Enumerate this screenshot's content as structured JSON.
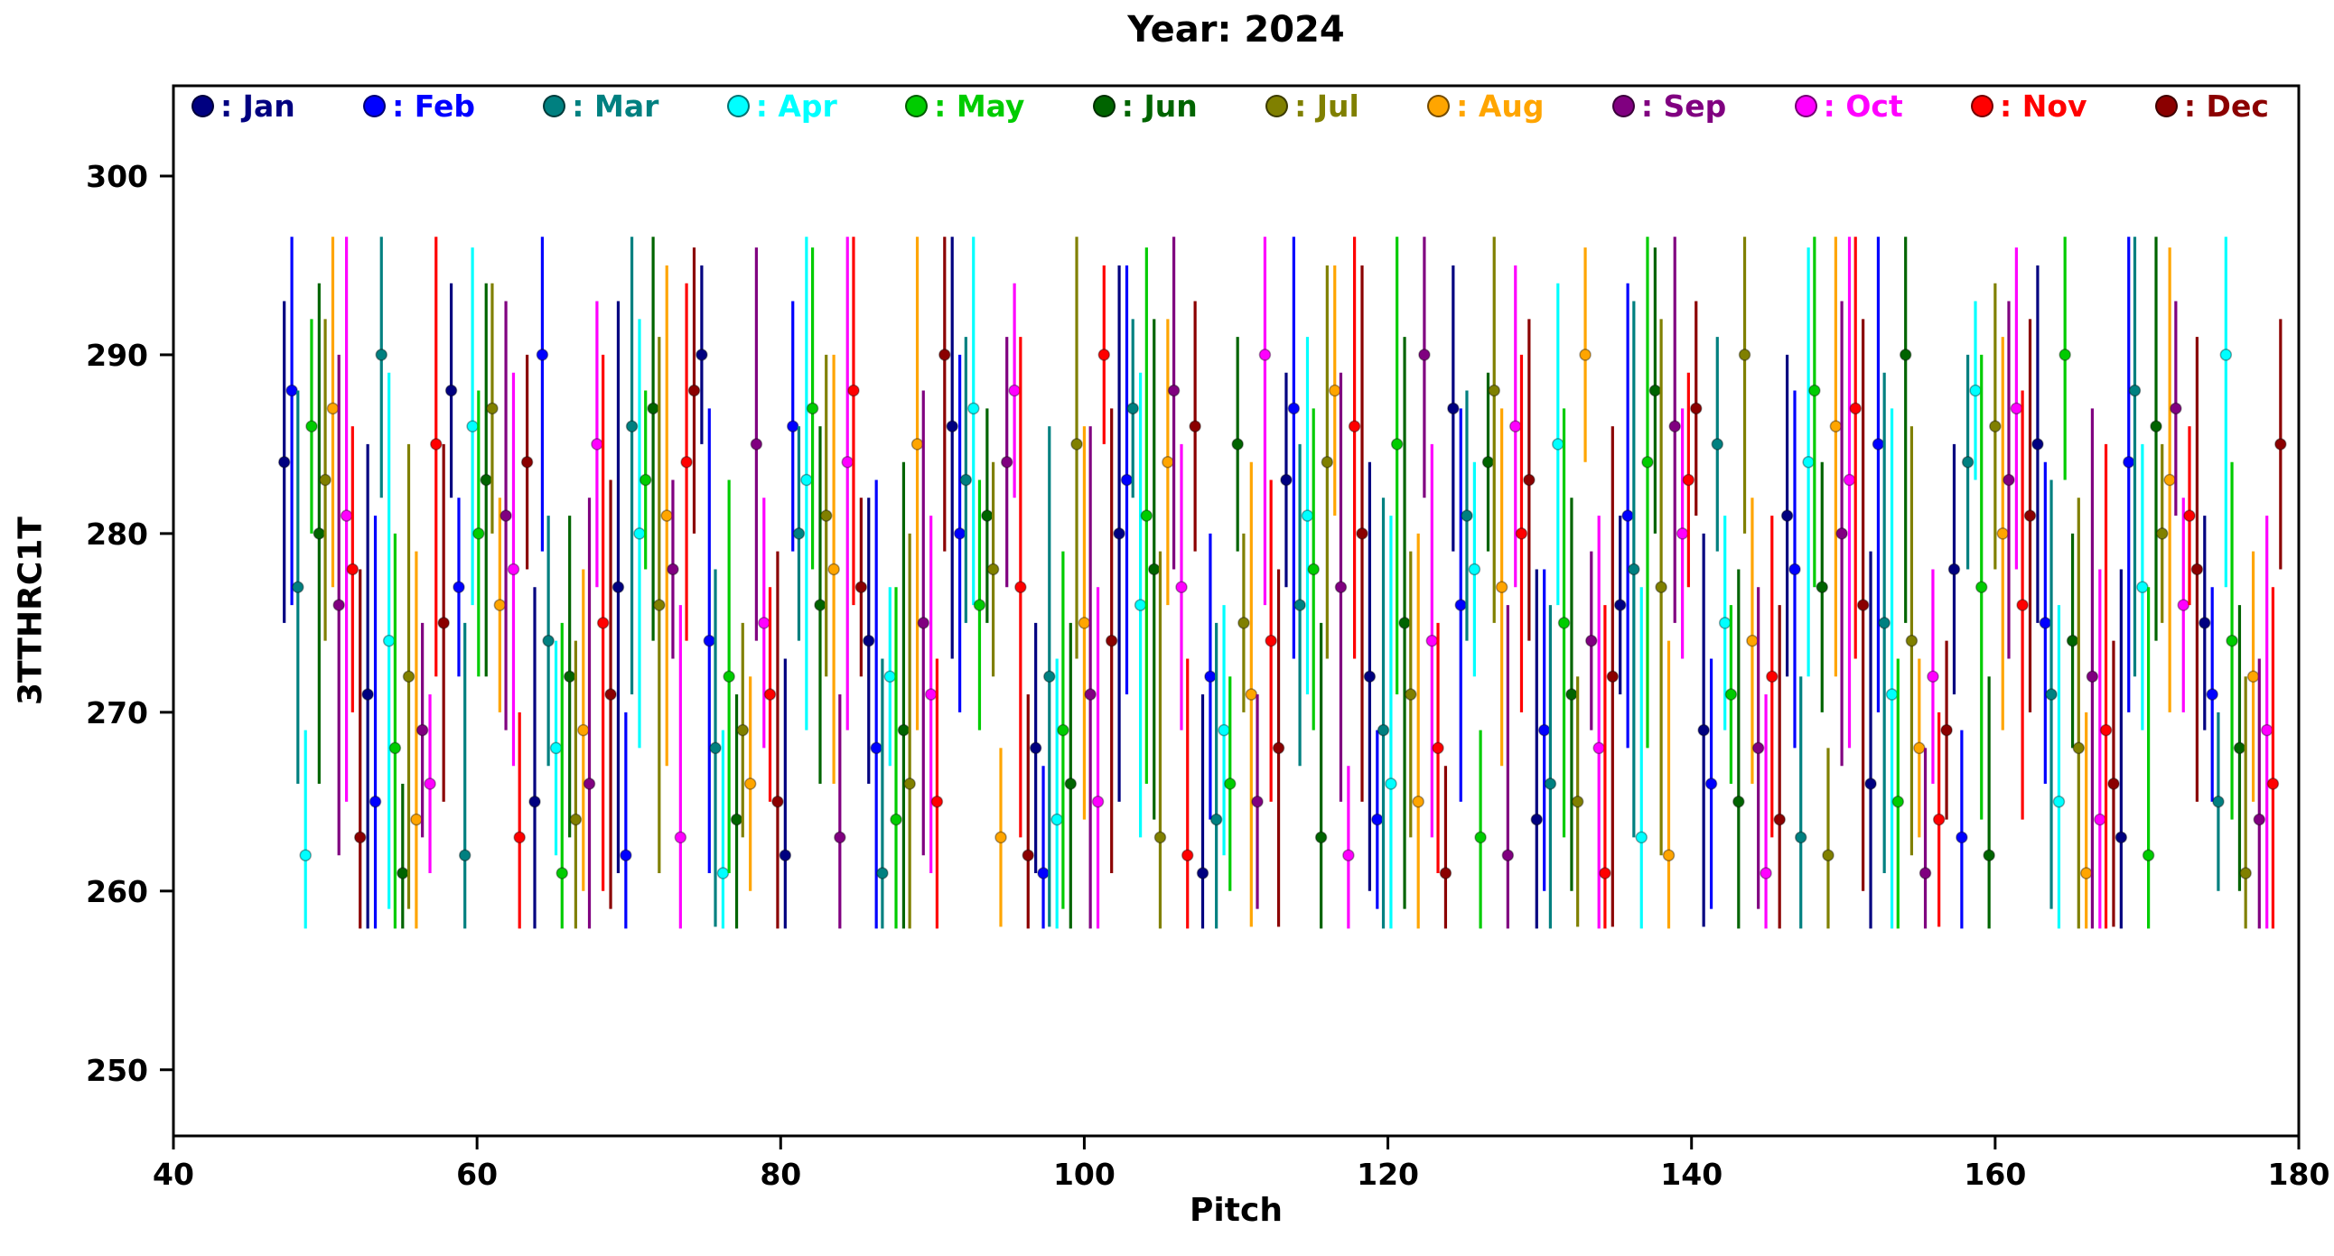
{
  "title": "Year: 2024",
  "axes": {
    "xlabel": "Pitch",
    "ylabel": "3TTHRC1T"
  },
  "legend": {
    "items": [
      {
        "label": ": Jan",
        "color": "#000080"
      },
      {
        "label": ": Feb",
        "color": "#0000ff"
      },
      {
        "label": ": Mar",
        "color": "#008080"
      },
      {
        "label": ": Apr",
        "color": "#00ffff"
      },
      {
        "label": ": May",
        "color": "#00cc00"
      },
      {
        "label": ": Jun",
        "color": "#006400"
      },
      {
        "label": ": Jul",
        "color": "#808000"
      },
      {
        "label": ": Aug",
        "color": "#ffa500"
      },
      {
        "label": ": Sep",
        "color": "#800080"
      },
      {
        "label": ": Oct",
        "color": "#ff00ff"
      },
      {
        "label": ": Nov",
        "color": "#ff0000"
      },
      {
        "label": ": Dec",
        "color": "#8b0000"
      }
    ]
  },
  "chart_data": {
    "type": "scatter",
    "title": "Year: 2024",
    "xlabel": "Pitch",
    "ylabel": "3TTHRC1T",
    "xlim": [
      40,
      180
    ],
    "ylim": [
      246.3,
      305.05
    ],
    "xticks": [
      40,
      60,
      80,
      100,
      120,
      140,
      160,
      180
    ],
    "yticks": [
      250,
      260,
      270,
      280,
      290,
      300
    ],
    "grid": false,
    "legend_position": "top-inside",
    "errorbar_range": [
      257.9,
      296.6
    ],
    "marker": "o",
    "series": [
      {
        "name": "Jan",
        "color": "#000080",
        "x": [
          47.3,
          52.8,
          58.3,
          63.8,
          69.3,
          74.8,
          80.3,
          85.8,
          91.3,
          96.8,
          102.3,
          107.8,
          113.3,
          118.8,
          124.3,
          129.8,
          135.3,
          140.8,
          146.3,
          151.8,
          157.3,
          162.8,
          168.3,
          173.8
        ],
        "y": [
          284,
          271,
          288,
          265,
          277,
          290,
          262,
          274,
          286,
          268,
          280,
          261,
          283,
          272,
          287,
          264,
          276,
          269,
          281,
          266,
          278,
          285,
          263,
          275
        ],
        "yerr": [
          9,
          14,
          6,
          12,
          16,
          5,
          11,
          8,
          13,
          7,
          15,
          10,
          6,
          12,
          8,
          14,
          5,
          11,
          9,
          13,
          7,
          10,
          15,
          6
        ]
      },
      {
        "name": "Feb",
        "color": "#0000ff",
        "x": [
          47.8,
          53.3,
          58.8,
          64.3,
          69.8,
          75.3,
          80.8,
          86.3,
          91.8,
          97.3,
          102.8,
          108.3,
          113.8,
          119.3,
          124.8,
          130.3,
          135.8,
          141.3,
          146.8,
          152.3,
          157.8,
          163.3,
          168.8,
          174.3
        ],
        "y": [
          288,
          265,
          277,
          290,
          262,
          274,
          286,
          268,
          280,
          261,
          283,
          272,
          287,
          264,
          276,
          269,
          281,
          266,
          278,
          285,
          263,
          275,
          284,
          271
        ],
        "yerr": [
          12,
          16,
          5,
          11,
          8,
          13,
          7,
          15,
          10,
          6,
          12,
          8,
          14,
          5,
          11,
          9,
          13,
          7,
          10,
          15,
          6,
          9,
          14,
          6
        ]
      },
      {
        "name": "Mar",
        "color": "#008080",
        "x": [
          48.2,
          53.7,
          59.2,
          64.7,
          70.2,
          75.7,
          81.2,
          86.7,
          92.2,
          97.7,
          103.2,
          108.7,
          114.2,
          119.7,
          125.2,
          130.7,
          136.2,
          141.7,
          147.2,
          152.7,
          158.2,
          163.7,
          169.2,
          174.7
        ],
        "y": [
          277,
          290,
          262,
          274,
          286,
          268,
          280,
          261,
          283,
          272,
          287,
          264,
          276,
          269,
          281,
          266,
          278,
          285,
          263,
          275,
          284,
          271,
          288,
          265
        ],
        "yerr": [
          11,
          8,
          13,
          7,
          15,
          10,
          6,
          12,
          8,
          14,
          5,
          11,
          9,
          13,
          7,
          10,
          15,
          6,
          9,
          14,
          6,
          12,
          16,
          5
        ]
      },
      {
        "name": "Apr",
        "color": "#00ffff",
        "x": [
          48.7,
          54.2,
          59.7,
          65.2,
          70.7,
          76.2,
          81.7,
          87.2,
          92.7,
          98.2,
          103.7,
          109.2,
          114.7,
          120.2,
          125.7,
          131.2,
          136.7,
          142.2,
          147.7,
          153.2,
          158.7,
          164.2,
          169.7,
          175.2
        ],
        "y": [
          262,
          274,
          286,
          268,
          280,
          261,
          283,
          272,
          287,
          264,
          276,
          269,
          281,
          266,
          278,
          285,
          263,
          275,
          284,
          271,
          288,
          265,
          277,
          290
        ],
        "yerr": [
          7,
          15,
          10,
          6,
          12,
          8,
          14,
          5,
          11,
          9,
          13,
          7,
          10,
          15,
          6,
          9,
          14,
          6,
          12,
          16,
          5,
          11,
          8,
          13
        ]
      },
      {
        "name": "May",
        "color": "#00cc00",
        "x": [
          49.1,
          54.6,
          60.1,
          65.6,
          71.1,
          76.6,
          82.1,
          87.6,
          93.1,
          98.6,
          104.1,
          109.6,
          115.1,
          120.6,
          126.1,
          131.6,
          137.1,
          142.6,
          148.1,
          153.6,
          159.1,
          164.6,
          170.1,
          175.6
        ],
        "y": [
          286,
          268,
          280,
          261,
          283,
          272,
          287,
          264,
          276,
          269,
          281,
          266,
          278,
          285,
          263,
          275,
          284,
          271,
          288,
          265,
          277,
          290,
          262,
          274
        ],
        "yerr": [
          6,
          12,
          8,
          14,
          5,
          11,
          9,
          13,
          7,
          10,
          15,
          6,
          9,
          14,
          6,
          12,
          16,
          5,
          11,
          8,
          13,
          7,
          15,
          10
        ]
      },
      {
        "name": "Jun",
        "color": "#006400",
        "x": [
          49.6,
          55.1,
          60.6,
          66.1,
          71.6,
          77.1,
          82.6,
          88.1,
          93.6,
          99.1,
          104.6,
          110.1,
          115.6,
          121.1,
          126.6,
          132.1,
          137.6,
          143.1,
          148.6,
          154.1,
          159.6,
          165.1,
          170.6,
          176.1
        ],
        "y": [
          280,
          261,
          283,
          272,
          287,
          264,
          276,
          269,
          281,
          266,
          278,
          285,
          263,
          275,
          284,
          271,
          288,
          265,
          277,
          290,
          262,
          274,
          286,
          268
        ],
        "yerr": [
          14,
          5,
          11,
          9,
          13,
          7,
          10,
          15,
          6,
          9,
          14,
          6,
          12,
          16,
          5,
          11,
          8,
          13,
          7,
          15,
          10,
          6,
          12,
          8
        ]
      },
      {
        "name": "Jul",
        "color": "#808000",
        "x": [
          50.0,
          55.5,
          61.0,
          66.5,
          72.0,
          77.5,
          83.0,
          88.5,
          94.0,
          99.5,
          105.0,
          110.5,
          116.0,
          121.5,
          127.0,
          132.5,
          138.0,
          143.5,
          149.0,
          154.5,
          160.0,
          165.5,
          171.0,
          176.5
        ],
        "y": [
          283,
          272,
          287,
          264,
          276,
          269,
          281,
          266,
          278,
          285,
          263,
          275,
          284,
          271,
          288,
          265,
          277,
          290,
          262,
          274,
          286,
          268,
          280,
          261
        ],
        "yerr": [
          9,
          13,
          7,
          10,
          15,
          6,
          9,
          14,
          6,
          12,
          16,
          5,
          11,
          8,
          13,
          7,
          15,
          10,
          6,
          12,
          8,
          14,
          5,
          11
        ]
      },
      {
        "name": "Aug",
        "color": "#ffa500",
        "x": [
          50.5,
          56.0,
          61.5,
          67.0,
          72.5,
          78.0,
          83.5,
          89.0,
          94.5,
          100.0,
          105.5,
          111.0,
          116.5,
          122.0,
          127.5,
          133.0,
          138.5,
          144.0,
          149.5,
          155.0,
          160.5,
          166.0,
          171.5,
          177.0
        ],
        "y": [
          287,
          264,
          276,
          269,
          281,
          266,
          278,
          285,
          263,
          275,
          284,
          271,
          288,
          265,
          277,
          290,
          262,
          274,
          286,
          268,
          280,
          261,
          283,
          272
        ],
        "yerr": [
          10,
          15,
          6,
          9,
          14,
          6,
          12,
          16,
          5,
          11,
          8,
          13,
          7,
          15,
          10,
          6,
          12,
          8,
          14,
          5,
          11,
          9,
          13,
          7
        ]
      },
      {
        "name": "Sep",
        "color": "#800080",
        "x": [
          50.9,
          56.4,
          61.9,
          67.4,
          72.9,
          78.4,
          83.9,
          89.4,
          94.9,
          100.4,
          105.9,
          111.4,
          116.9,
          122.4,
          127.9,
          133.4,
          138.9,
          144.4,
          149.9,
          155.4,
          160.9,
          166.4,
          171.9,
          177.4
        ],
        "y": [
          276,
          269,
          281,
          266,
          278,
          285,
          263,
          275,
          284,
          271,
          288,
          265,
          277,
          290,
          262,
          274,
          286,
          268,
          280,
          261,
          283,
          272,
          287,
          264
        ],
        "yerr": [
          14,
          6,
          12,
          16,
          5,
          11,
          8,
          13,
          7,
          15,
          10,
          6,
          12,
          8,
          14,
          5,
          11,
          9,
          13,
          7,
          10,
          15,
          6,
          9
        ]
      },
      {
        "name": "Oct",
        "color": "#ff00ff",
        "x": [
          51.4,
          56.9,
          62.4,
          67.9,
          73.4,
          78.9,
          84.4,
          89.9,
          95.4,
          100.9,
          106.4,
          111.9,
          117.4,
          122.9,
          128.4,
          133.9,
          139.4,
          144.9,
          150.4,
          155.9,
          161.4,
          166.9,
          172.4,
          177.9
        ],
        "y": [
          281,
          266,
          278,
          285,
          263,
          275,
          284,
          271,
          288,
          265,
          277,
          290,
          262,
          274,
          286,
          268,
          280,
          261,
          283,
          272,
          287,
          264,
          276,
          269
        ],
        "yerr": [
          16,
          5,
          11,
          8,
          13,
          7,
          15,
          10,
          6,
          12,
          8,
          14,
          5,
          11,
          9,
          13,
          7,
          10,
          15,
          6,
          9,
          14,
          6,
          12
        ]
      },
      {
        "name": "Nov",
        "color": "#ff0000",
        "x": [
          51.8,
          57.3,
          62.8,
          68.3,
          73.8,
          79.3,
          84.8,
          90.3,
          95.8,
          101.3,
          106.8,
          112.3,
          117.8,
          123.3,
          128.8,
          134.3,
          139.8,
          145.3,
          150.8,
          156.3,
          161.8,
          167.3,
          172.8,
          178.3
        ],
        "y": [
          278,
          285,
          263,
          275,
          284,
          271,
          288,
          265,
          277,
          290,
          262,
          274,
          286,
          268,
          280,
          261,
          283,
          272,
          287,
          264,
          276,
          269,
          281,
          266
        ],
        "yerr": [
          8,
          13,
          7,
          15,
          10,
          6,
          12,
          8,
          14,
          5,
          11,
          9,
          13,
          7,
          10,
          15,
          6,
          9,
          14,
          6,
          12,
          16,
          5,
          11
        ]
      },
      {
        "name": "Dec",
        "color": "#8b0000",
        "x": [
          52.3,
          57.8,
          63.3,
          68.8,
          74.3,
          79.8,
          85.3,
          90.8,
          96.3,
          101.8,
          107.3,
          112.8,
          118.3,
          123.8,
          129.3,
          134.8,
          140.3,
          145.8,
          151.3,
          156.8,
          162.3,
          167.8,
          173.3,
          178.8
        ],
        "y": [
          263,
          275,
          284,
          271,
          288,
          265,
          277,
          290,
          262,
          274,
          286,
          268,
          280,
          261,
          283,
          272,
          287,
          264,
          276,
          269,
          281,
          266,
          278,
          285
        ],
        "yerr": [
          15,
          10,
          6,
          12,
          8,
          14,
          5,
          11,
          9,
          13,
          7,
          10,
          15,
          6,
          9,
          14,
          6,
          12,
          16,
          5,
          11,
          8,
          13,
          7
        ]
      }
    ]
  }
}
